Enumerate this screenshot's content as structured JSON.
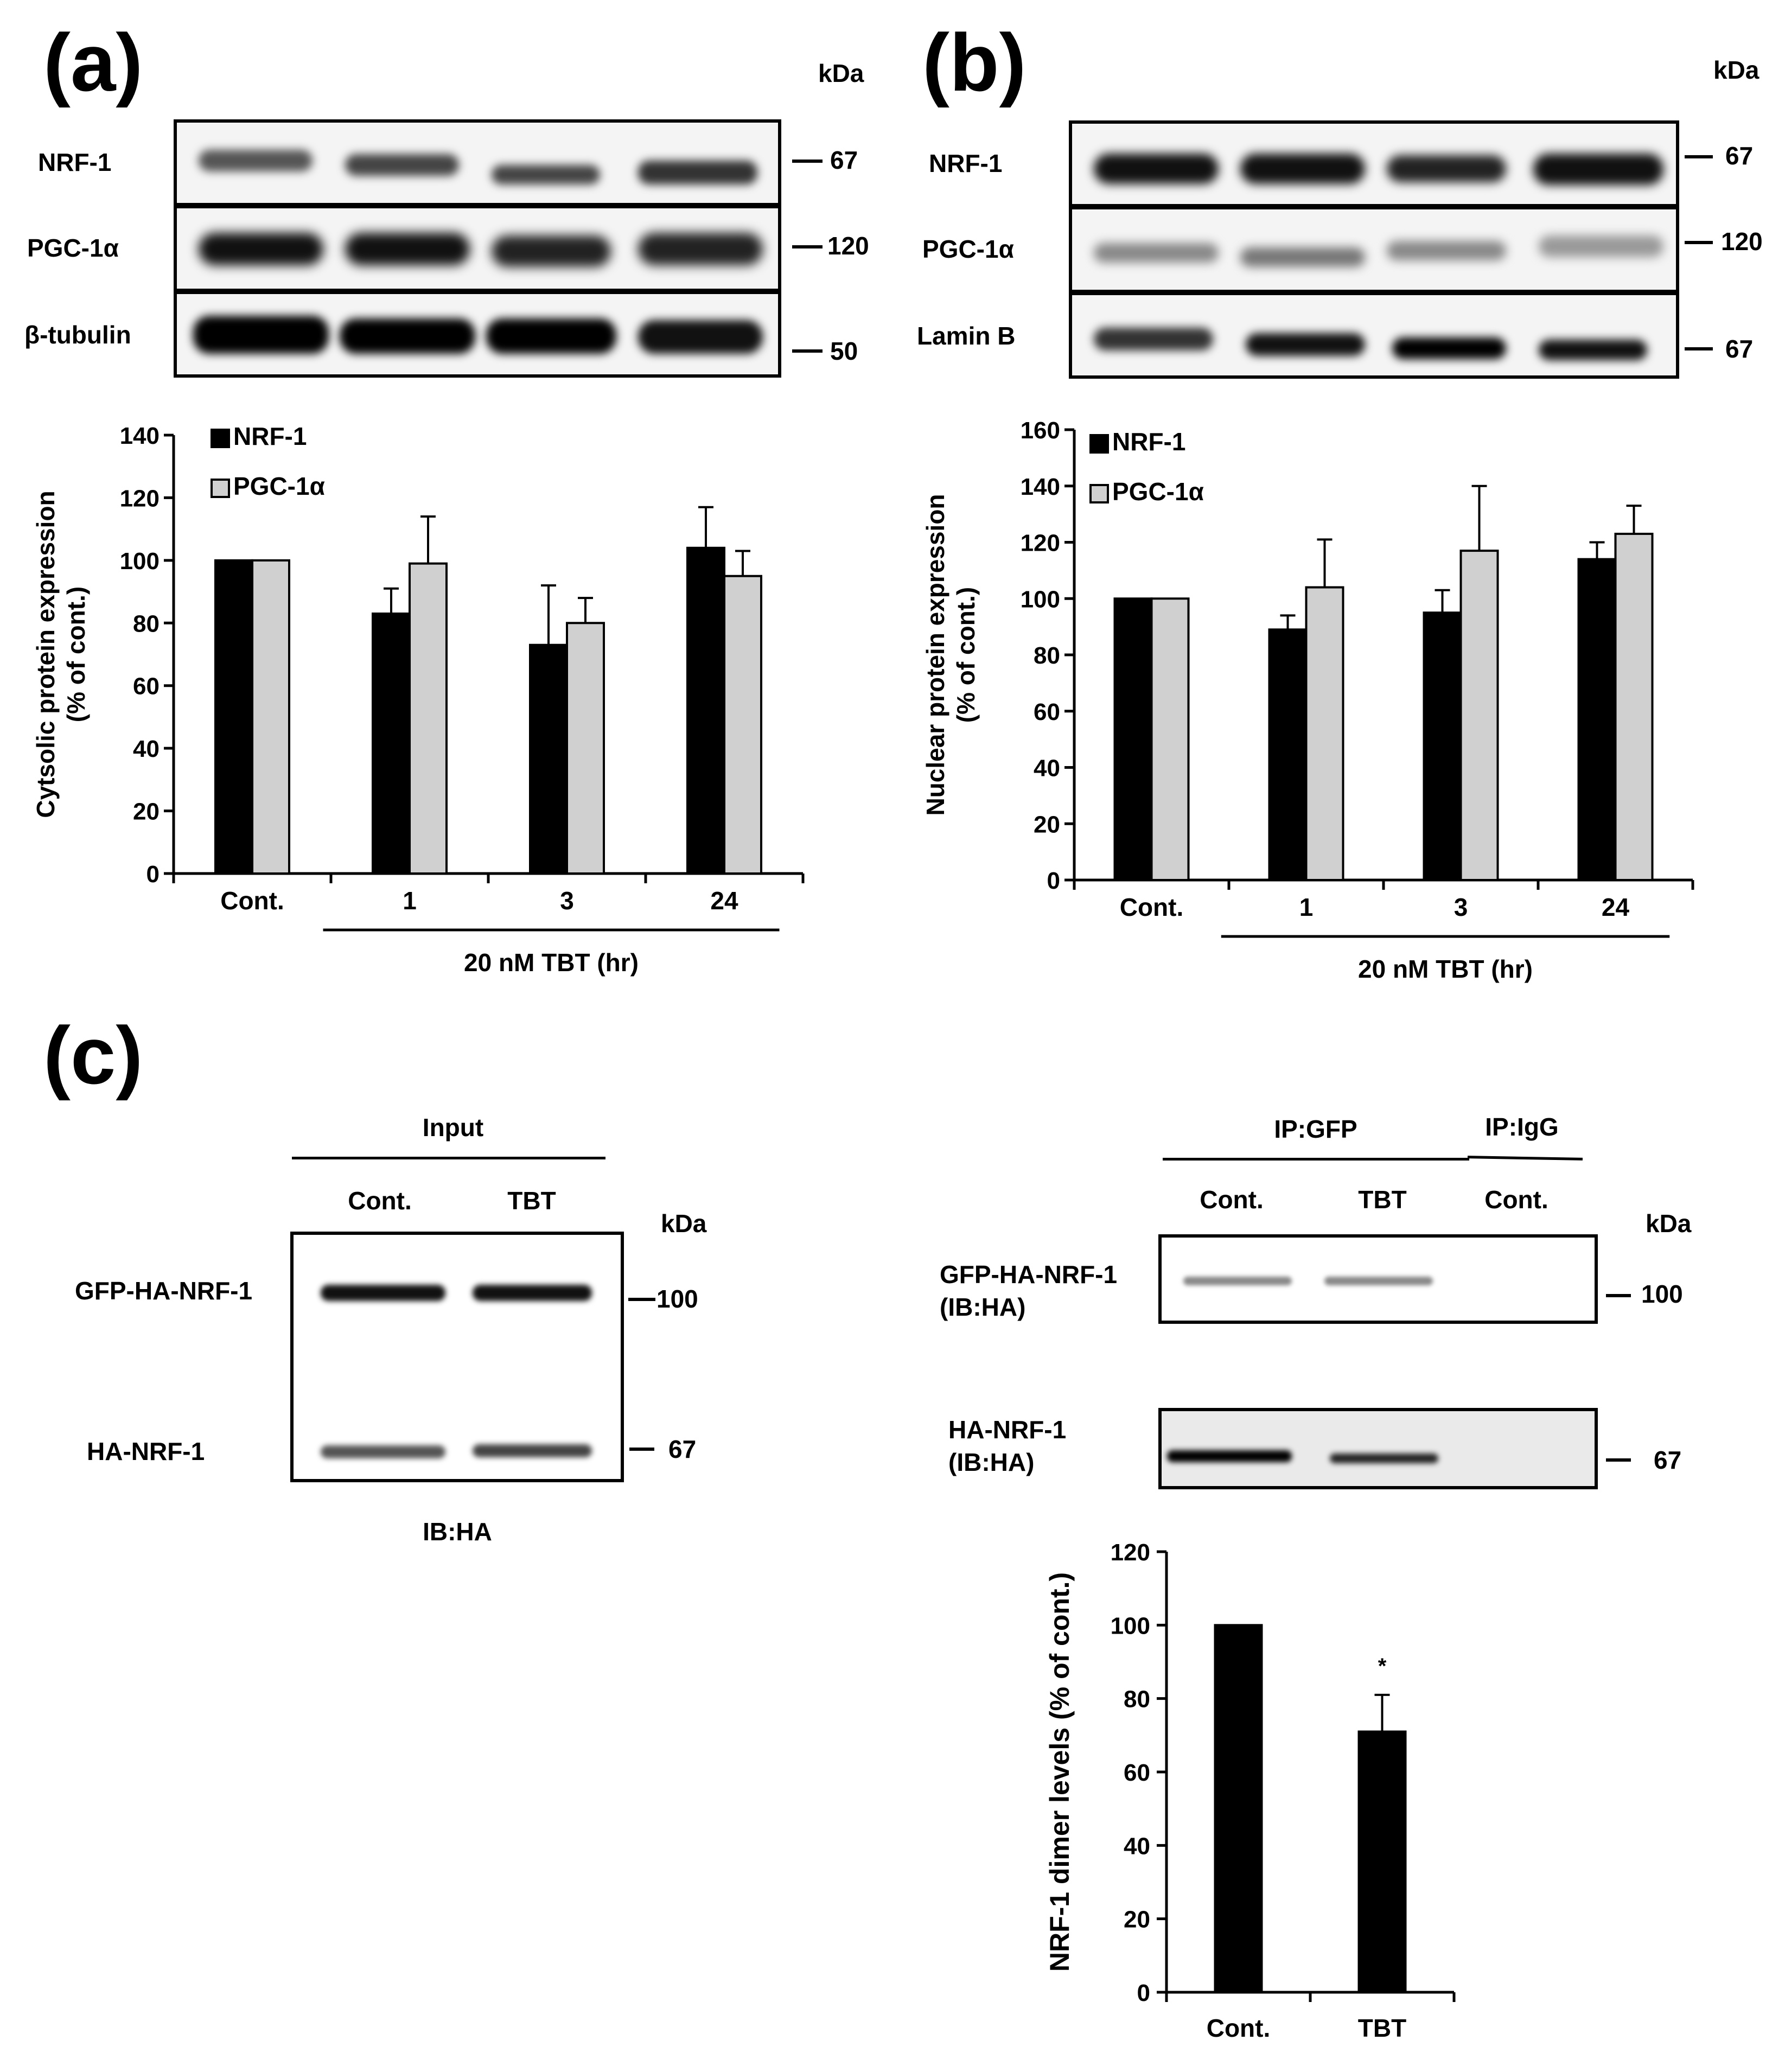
{
  "panels": {
    "a": {
      "label": "(a)",
      "kda": "kDa",
      "rows": [
        "NRF-1",
        "PGC-1α",
        "β-tubulin"
      ],
      "markers": [
        "67",
        "120",
        "50"
      ]
    },
    "b": {
      "label": "(b)",
      "kda": "kDa",
      "rows": [
        "NRF-1",
        "PGC-1α",
        "Lamin B"
      ],
      "markers": [
        "67",
        "120",
        "67"
      ]
    },
    "c": {
      "label": "(c)",
      "input": {
        "header": "Input",
        "lanes": [
          "Cont.",
          "TBT"
        ],
        "kda": "kDa",
        "rows": [
          "GFP-HA-NRF-1",
          "HA-NRF-1"
        ],
        "markers": [
          "100",
          "67"
        ],
        "footer": "IB:HA"
      },
      "ip": {
        "groups": [
          "IP:GFP",
          "IP:IgG"
        ],
        "lanes": [
          "Cont.",
          "TBT",
          "Cont."
        ],
        "kda": "kDa",
        "rows": [
          {
            "line1": "GFP-HA-NRF-1",
            "line2": "(IB:HA)"
          },
          {
            "line1": "HA-NRF-1",
            "line2": "(IB:HA)"
          }
        ],
        "markers": [
          "100",
          "67"
        ]
      }
    }
  },
  "colors": {
    "nrf1": "#000000",
    "pgc": "#d0d0d0"
  },
  "chart_data": [
    {
      "type": "bar",
      "panel": "a",
      "categories": [
        "Cont.",
        "1",
        "3",
        "24"
      ],
      "series": [
        {
          "name": "NRF-1",
          "values": [
            100,
            83,
            73,
            104
          ],
          "errors": [
            0,
            8,
            19,
            13
          ]
        },
        {
          "name": "PGC-1α",
          "values": [
            100,
            99,
            80,
            95
          ],
          "errors": [
            0,
            15,
            8,
            8
          ]
        }
      ],
      "ylabel_line1": "Cytsolic protein expression",
      "ylabel_line2": "(% of cont.)",
      "xgroup_label": "20 nM TBT (hr)",
      "ylim": [
        0,
        140
      ],
      "yticks": [
        0,
        20,
        40,
        60,
        80,
        100,
        120,
        140
      ],
      "legend": "top-left"
    },
    {
      "type": "bar",
      "panel": "b",
      "categories": [
        "Cont.",
        "1",
        "3",
        "24"
      ],
      "series": [
        {
          "name": "NRF-1",
          "values": [
            100,
            89,
            95,
            114
          ],
          "errors": [
            0,
            5,
            8,
            6
          ]
        },
        {
          "name": "PGC-1α",
          "values": [
            100,
            104,
            117,
            123
          ],
          "errors": [
            0,
            17,
            23,
            10
          ]
        }
      ],
      "ylabel_line1": "Nuclear protein expression",
      "ylabel_line2": "(% of cont.)",
      "xgroup_label": "20 nM TBT (hr)",
      "ylim": [
        0,
        160
      ],
      "yticks": [
        0,
        20,
        40,
        60,
        80,
        100,
        120,
        140,
        160
      ],
      "legend": "top-left"
    },
    {
      "type": "bar",
      "panel": "c",
      "categories": [
        "Cont.",
        "TBT"
      ],
      "series": [
        {
          "values": [
            100,
            71
          ],
          "errors": [
            0,
            10
          ]
        }
      ],
      "annotation": "*",
      "ylabel": "NRF-1 dimer levels (% of cont.)",
      "ylim": [
        0,
        120
      ],
      "yticks": [
        0,
        20,
        40,
        60,
        80,
        100,
        120
      ]
    }
  ]
}
